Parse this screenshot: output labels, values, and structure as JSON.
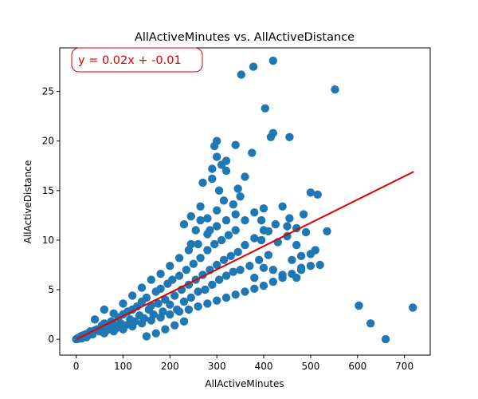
{
  "chart_data": {
    "type": "scatter",
    "title": "AllActiveMinutes vs. AllActiveDistance",
    "xlabel": "AllActiveMinutes",
    "ylabel": "AllActiveDistance",
    "xlim": [
      -35,
      755
    ],
    "ylim": [
      -1.6,
      29.4
    ],
    "xticks": [
      0,
      100,
      200,
      300,
      400,
      500,
      600,
      700
    ],
    "yticks": [
      0,
      5,
      10,
      15,
      20,
      25
    ],
    "grid": false,
    "colors": {
      "points": "#1f77b4",
      "fit_line": "#dd0000",
      "annotation": "#dd0000"
    },
    "annotation": {
      "text": "y = 0.02x + -0.01",
      "placement": "top-left"
    },
    "fit_line": {
      "slope": 0.0235,
      "intercept": -0.01,
      "x_range": [
        0,
        720
      ]
    },
    "series": [
      {
        "points": [
          [
            0,
            0
          ],
          [
            3,
            0.1
          ],
          [
            5,
            0.05
          ],
          [
            8,
            0.2
          ],
          [
            10,
            0.3
          ],
          [
            12,
            0.1
          ],
          [
            15,
            0.4
          ],
          [
            18,
            0.3
          ],
          [
            20,
            0.5
          ],
          [
            22,
            0.2
          ],
          [
            25,
            0.6
          ],
          [
            28,
            0.5
          ],
          [
            30,
            0.8
          ],
          [
            35,
            0.5
          ],
          [
            40,
            0.9
          ],
          [
            45,
            1.0
          ],
          [
            50,
            0.8
          ],
          [
            55,
            1.4
          ],
          [
            60,
            1.6
          ],
          [
            65,
            0.9
          ],
          [
            70,
            1.2
          ],
          [
            75,
            1.8
          ],
          [
            80,
            1.5
          ],
          [
            85,
            1.1
          ],
          [
            90,
            2.2
          ],
          [
            95,
            1.6
          ],
          [
            100,
            2.5
          ],
          [
            105,
            1.4
          ],
          [
            110,
            2.8
          ],
          [
            115,
            2.0
          ],
          [
            120,
            3.0
          ],
          [
            125,
            1.8
          ],
          [
            130,
            3.3
          ],
          [
            135,
            2.4
          ],
          [
            140,
            3.8
          ],
          [
            145,
            2.1
          ],
          [
            150,
            4.2
          ],
          [
            155,
            3.0
          ],
          [
            160,
            3.4
          ],
          [
            165,
            2.5
          ],
          [
            170,
            4.8
          ],
          [
            175,
            3.6
          ],
          [
            180,
            5.1
          ],
          [
            185,
            2.8
          ],
          [
            190,
            4.0
          ],
          [
            195,
            5.6
          ],
          [
            200,
            3.5
          ],
          [
            205,
            6.0
          ],
          [
            210,
            4.4
          ],
          [
            215,
            3.0
          ],
          [
            220,
            6.4
          ],
          [
            225,
            5.0
          ],
          [
            230,
            3.8
          ],
          [
            235,
            7.0
          ],
          [
            240,
            5.5
          ],
          [
            245,
            4.2
          ],
          [
            250,
            7.6
          ],
          [
            255,
            6.0
          ],
          [
            260,
            4.8
          ],
          [
            265,
            8.2
          ],
          [
            270,
            6.5
          ],
          [
            275,
            5.0
          ],
          [
            280,
            9.0
          ],
          [
            285,
            7.0
          ],
          [
            290,
            5.5
          ],
          [
            295,
            9.6
          ],
          [
            300,
            7.5
          ],
          [
            305,
            6.0
          ],
          [
            310,
            10.0
          ],
          [
            315,
            8.0
          ],
          [
            320,
            6.4
          ],
          [
            325,
            10.5
          ],
          [
            330,
            8.4
          ],
          [
            335,
            6.8
          ],
          [
            340,
            11.0
          ],
          [
            345,
            8.8
          ],
          [
            350,
            7.0
          ],
          [
            360,
            9.5
          ],
          [
            370,
            7.4
          ],
          [
            380,
            10.2
          ],
          [
            390,
            8.0
          ],
          [
            400,
            11.0
          ],
          [
            410,
            8.5
          ],
          [
            420,
            7.0
          ],
          [
            430,
            9.8
          ],
          [
            440,
            6.5
          ],
          [
            450,
            10.4
          ],
          [
            460,
            8.0
          ],
          [
            470,
            9.5
          ],
          [
            480,
            7.2
          ],
          [
            490,
            10.8
          ],
          [
            500,
            8.6
          ],
          [
            510,
            9.0
          ],
          [
            520,
            7.5
          ],
          [
            40,
            2.0
          ],
          [
            60,
            3.0
          ],
          [
            80,
            2.6
          ],
          [
            100,
            3.6
          ],
          [
            120,
            4.4
          ],
          [
            140,
            5.2
          ],
          [
            160,
            6.0
          ],
          [
            180,
            6.6
          ],
          [
            200,
            7.4
          ],
          [
            220,
            8.2
          ],
          [
            240,
            9.0
          ],
          [
            260,
            9.6
          ],
          [
            280,
            10.6
          ],
          [
            300,
            11.4
          ],
          [
            320,
            12.0
          ],
          [
            340,
            12.6
          ],
          [
            360,
            12.0
          ],
          [
            380,
            12.8
          ],
          [
            400,
            13.2
          ],
          [
            60,
            0.6
          ],
          [
            80,
            0.8
          ],
          [
            100,
            1.0
          ],
          [
            120,
            1.3
          ],
          [
            140,
            1.6
          ],
          [
            160,
            1.9
          ],
          [
            180,
            2.2
          ],
          [
            200,
            2.5
          ],
          [
            220,
            2.8
          ],
          [
            240,
            3.0
          ],
          [
            260,
            3.3
          ],
          [
            280,
            3.6
          ],
          [
            300,
            3.9
          ],
          [
            320,
            4.2
          ],
          [
            340,
            4.5
          ],
          [
            360,
            4.8
          ],
          [
            380,
            5.1
          ],
          [
            400,
            5.4
          ],
          [
            420,
            5.8
          ],
          [
            440,
            6.2
          ],
          [
            460,
            6.6
          ],
          [
            480,
            7.0
          ],
          [
            500,
            7.4
          ],
          [
            230,
            11.6
          ],
          [
            245,
            12.4
          ],
          [
            265,
            13.4
          ],
          [
            280,
            12.2
          ],
          [
            300,
            13.0
          ],
          [
            315,
            14.0
          ],
          [
            335,
            13.6
          ],
          [
            350,
            14.4
          ],
          [
            270,
            15.8
          ],
          [
            290,
            16.2
          ],
          [
            305,
            15.0
          ],
          [
            320,
            17.0
          ],
          [
            345,
            15.2
          ],
          [
            360,
            16.4
          ],
          [
            300,
            18.4
          ],
          [
            320,
            18.0
          ],
          [
            340,
            19.6
          ],
          [
            375,
            18.8
          ],
          [
            310,
            17.6
          ],
          [
            290,
            17.2
          ],
          [
            300,
            20.0
          ],
          [
            295,
            19.5
          ],
          [
            265,
            12.0
          ],
          [
            285,
            11.0
          ],
          [
            255,
            11.0
          ],
          [
            245,
            9.6
          ],
          [
            395,
            12.0
          ],
          [
            410,
            10.9
          ],
          [
            425,
            11.6
          ],
          [
            440,
            13.4
          ],
          [
            455,
            12.2
          ],
          [
            470,
            11.2
          ],
          [
            485,
            12.6
          ],
          [
            500,
            14.8
          ],
          [
            515,
            14.6
          ],
          [
            535,
            10.9
          ],
          [
            455,
            20.4
          ],
          [
            420,
            20.8
          ],
          [
            415,
            20.4
          ],
          [
            395,
            10.0
          ],
          [
            400,
            7.2
          ],
          [
            380,
            6.2
          ],
          [
            450,
            11.4
          ],
          [
            480,
            8.4
          ],
          [
            470,
            6.2
          ],
          [
            150,
            0.3
          ],
          [
            170,
            0.6
          ],
          [
            190,
            1.0
          ],
          [
            210,
            1.4
          ],
          [
            230,
            1.8
          ],
          [
            352,
            26.7
          ],
          [
            378,
            27.5
          ],
          [
            420,
            28.1
          ],
          [
            403,
            23.3
          ],
          [
            552,
            25.2
          ],
          [
            603,
            3.4
          ],
          [
            628,
            1.6
          ],
          [
            660,
            0.0
          ],
          [
            718,
            3.2
          ]
        ]
      }
    ]
  }
}
